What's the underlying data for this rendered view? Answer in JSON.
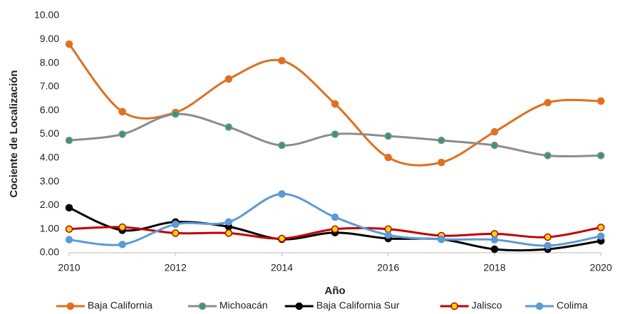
{
  "chart_data": {
    "type": "line",
    "smooth": true,
    "grid": false,
    "legend": "bottom",
    "x_label": "Año",
    "y_label": "Cociente de Localización",
    "x": [
      2010,
      2011,
      2012,
      2013,
      2014,
      2015,
      2016,
      2017,
      2018,
      2019,
      2020
    ],
    "xlim": [
      2010,
      2020
    ],
    "xticks": [
      2010,
      2012,
      2014,
      2016,
      2018,
      2020
    ],
    "ylim": [
      0,
      10
    ],
    "yticks": [
      {
        "value": 0,
        "label": "0.00"
      },
      {
        "value": 1,
        "label": "1.00"
      },
      {
        "value": 2,
        "label": "2.00"
      },
      {
        "value": 3,
        "label": "3.00"
      },
      {
        "value": 4,
        "label": "4.00"
      },
      {
        "value": 5,
        "label": "5.00"
      },
      {
        "value": 6,
        "label": "6.00"
      },
      {
        "value": 7,
        "label": "7.00"
      },
      {
        "value": 8,
        "label": "8.00"
      },
      {
        "value": 9,
        "label": "9.00"
      },
      {
        "value": 10,
        "label": "10.00"
      }
    ],
    "series": [
      {
        "name": "Baja California",
        "color": "#e07020",
        "marker_fill": "#e07020",
        "values": [
          8.8,
          5.95,
          5.92,
          7.33,
          8.1,
          6.28,
          4.02,
          3.81,
          5.1,
          6.33,
          6.4
        ]
      },
      {
        "name": "Michoacán",
        "color": "#8c8c8c",
        "marker_fill": "#2e9e6e",
        "values": [
          4.74,
          5.0,
          5.85,
          5.3,
          4.53,
          5.0,
          4.92,
          4.74,
          4.53,
          4.1,
          4.1
        ]
      },
      {
        "name": "Baja California Sur",
        "color": "#000000",
        "marker_fill": "#000000",
        "values": [
          1.9,
          0.95,
          1.3,
          1.1,
          0.57,
          0.85,
          0.6,
          0.57,
          0.15,
          0.15,
          0.5
        ]
      },
      {
        "name": "Jalisco",
        "color": "#c00000",
        "marker_fill": "#ffd700",
        "values": [
          1.0,
          1.08,
          0.83,
          0.83,
          0.6,
          1.0,
          1.0,
          0.72,
          0.8,
          0.66,
          1.07
        ]
      },
      {
        "name": "Colima",
        "color": "#5b9bd5",
        "marker_fill": "#5b9bd5",
        "values": [
          0.55,
          0.35,
          1.2,
          1.3,
          2.48,
          1.5,
          0.75,
          0.57,
          0.55,
          0.3,
          0.7
        ]
      }
    ]
  }
}
